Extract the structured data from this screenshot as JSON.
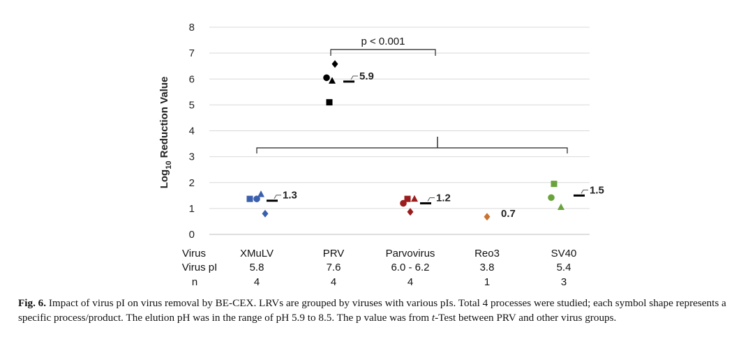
{
  "chart_data": {
    "type": "scatter",
    "ylabel_main": "Log",
    "ylabel_sub": "10",
    "ylabel_rest": " Reduction Value",
    "ylim": [
      0,
      8
    ],
    "yticks": [
      "0",
      "1",
      "2",
      "3",
      "4",
      "5",
      "6",
      "7",
      "8"
    ],
    "grid": true,
    "row_labels": [
      "Virus",
      "Virus pI",
      "n"
    ],
    "groups": [
      {
        "name": "XMuLV",
        "pi": "5.8",
        "n": "4",
        "color": "#3a5fad",
        "mean": 1.3,
        "mean_label": "1.3",
        "points": [
          {
            "shape": "square",
            "value": 1.37
          },
          {
            "shape": "circle",
            "value": 1.37
          },
          {
            "shape": "triangle",
            "value": 1.55
          },
          {
            "shape": "diamond",
            "value": 0.8
          }
        ]
      },
      {
        "name": "PRV",
        "pi": "7.6",
        "n": "4",
        "color": "#000000",
        "mean": 5.9,
        "mean_label": "5.9",
        "points": [
          {
            "shape": "circle",
            "value": 6.05
          },
          {
            "shape": "triangle",
            "value": 5.93
          },
          {
            "shape": "diamond",
            "value": 6.58
          },
          {
            "shape": "square",
            "value": 5.1
          }
        ]
      },
      {
        "name": "Parvovirus",
        "pi": "6.0 - 6.2",
        "n": "4",
        "color": "#9b1c1c",
        "mean": 1.2,
        "mean_label": "1.2",
        "points": [
          {
            "shape": "circle",
            "value": 1.2
          },
          {
            "shape": "square",
            "value": 1.37
          },
          {
            "shape": "triangle",
            "value": 1.37
          },
          {
            "shape": "diamond",
            "value": 0.87
          }
        ]
      },
      {
        "name": "Reo3",
        "pi": "3.8",
        "n": "1",
        "color": "#c8742e",
        "mean": 0.7,
        "mean_label": "0.7",
        "points": [
          {
            "shape": "diamond",
            "value": 0.68
          }
        ]
      },
      {
        "name": "SV40",
        "pi": "5.4",
        "n": "3",
        "color": "#6aa33c",
        "mean": 1.5,
        "mean_label": "1.5",
        "points": [
          {
            "shape": "square",
            "value": 1.95
          },
          {
            "shape": "circle",
            "value": 1.42
          },
          {
            "shape": "triangle",
            "value": 1.05
          }
        ]
      }
    ],
    "annotation": "p < 0.001"
  },
  "caption": {
    "label": "Fig. 6.",
    "text_line1": " Impact of virus pI on virus removal by BE-CEX. LRVs are grouped by viruses with various pIs. Total 4 processes were studied; each symbol shape represents a",
    "text_line2a": "specific process/product. The elution pH was in the range of pH 5.9 to 8.5. The p value was from ",
    "text_line2_italic": "t",
    "text_line2b": "-Test between PRV and other virus groups."
  }
}
